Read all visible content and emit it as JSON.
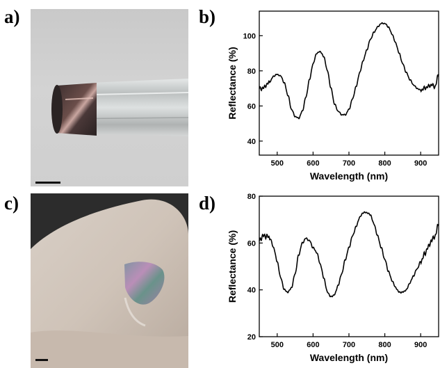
{
  "figure": {
    "panels": [
      {
        "letter": "a)"
      },
      {
        "letter": "b)"
      },
      {
        "letter": "c)"
      },
      {
        "letter": "d)"
      }
    ],
    "photos": [
      {
        "description_icon": "glass-rod-with-film-photo"
      },
      {
        "description_icon": "hand-with-film-photo"
      }
    ]
  },
  "chart_data": [
    {
      "type": "line",
      "panel": "b)",
      "xlabel": "Wavelength (nm)",
      "ylabel": "Reflectance (%)",
      "xlim": [
        450,
        950
      ],
      "ylim": [
        32,
        114
      ],
      "xticks": [
        500,
        600,
        700,
        800,
        900
      ],
      "yticks": [
        40,
        60,
        80,
        100
      ],
      "grid": false,
      "series": [
        {
          "x": [
            450,
            460,
            470,
            480,
            490,
            500,
            510,
            520,
            530,
            540,
            550,
            560,
            570,
            580,
            590,
            600,
            610,
            620,
            630,
            640,
            650,
            660,
            670,
            680,
            690,
            700,
            710,
            720,
            730,
            740,
            750,
            760,
            770,
            780,
            790,
            800,
            810,
            820,
            830,
            840,
            850,
            860,
            870,
            880,
            890,
            900,
            910,
            920,
            930,
            940,
            950
          ],
          "values": [
            70,
            70,
            72,
            74,
            77,
            78,
            77,
            73,
            66,
            58,
            54,
            53,
            57,
            65,
            75,
            84,
            90,
            91,
            88,
            80,
            70,
            61,
            57,
            55,
            55,
            58,
            64,
            71,
            79,
            86,
            92,
            98,
            102,
            105,
            107,
            107,
            105,
            101,
            96,
            90,
            84,
            79,
            75,
            72,
            70,
            69,
            70,
            71,
            72,
            71,
            78
          ]
        }
      ]
    },
    {
      "type": "line",
      "panel": "d)",
      "xlabel": "Wavelength (nm)",
      "ylabel": "Reflectance (%)",
      "xlim": [
        450,
        950
      ],
      "ylim": [
        20,
        80
      ],
      "xticks": [
        500,
        600,
        700,
        800,
        900
      ],
      "yticks": [
        20,
        40,
        60,
        80
      ],
      "grid": false,
      "series": [
        {
          "x": [
            450,
            460,
            470,
            480,
            490,
            500,
            510,
            520,
            530,
            540,
            550,
            560,
            570,
            580,
            590,
            600,
            610,
            620,
            630,
            640,
            650,
            660,
            670,
            680,
            690,
            700,
            710,
            720,
            730,
            740,
            750,
            760,
            770,
            780,
            790,
            800,
            810,
            820,
            830,
            840,
            850,
            860,
            870,
            880,
            890,
            900,
            910,
            920,
            930,
            940,
            950
          ],
          "values": [
            61,
            63,
            63,
            62,
            58,
            52,
            45,
            40,
            39,
            41,
            47,
            55,
            60,
            62,
            61,
            58,
            56,
            51,
            45,
            39,
            37,
            38,
            42,
            47,
            53,
            58,
            63,
            67,
            71,
            73,
            73,
            72,
            68,
            63,
            58,
            53,
            48,
            44,
            41,
            39,
            39,
            40,
            43,
            46,
            49,
            52,
            55,
            58,
            61,
            63,
            68
          ]
        }
      ]
    }
  ]
}
